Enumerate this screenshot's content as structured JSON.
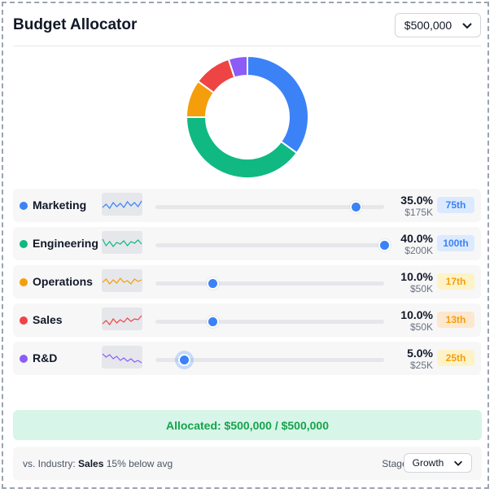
{
  "header": {
    "title": "Budget Allocator",
    "budget_value": "$500,000"
  },
  "chart_data": {
    "type": "pie",
    "categories": [
      "Marketing",
      "Engineering",
      "Operations",
      "Sales",
      "R&D"
    ],
    "values": [
      35,
      40,
      10,
      10,
      5
    ],
    "colors": [
      "#3b82f6",
      "#10b981",
      "#f59e0b",
      "#ef4444",
      "#8b5cf6"
    ]
  },
  "departments": [
    {
      "name": "Marketing",
      "color": "#3b82f6",
      "percent": "35.0%",
      "amount": "$175K",
      "badge": "75th",
      "badge_bg": "#dbeafe",
      "badge_color": "#3b82f6",
      "slider_value": 35,
      "spark": [
        10,
        14,
        9,
        16,
        11,
        15,
        10,
        17,
        12,
        16,
        11,
        18
      ]
    },
    {
      "name": "Engineering",
      "color": "#10b981",
      "percent": "40.0%",
      "amount": "$200K",
      "badge": "100th",
      "badge_bg": "#dbeafe",
      "badge_color": "#3b82f6",
      "slider_value": 40,
      "spark": [
        18,
        10,
        15,
        9,
        14,
        12,
        16,
        10,
        15,
        13,
        17,
        12
      ]
    },
    {
      "name": "Operations",
      "color": "#f59e0b",
      "percent": "10.0%",
      "amount": "$50K",
      "badge": "17th",
      "badge_bg": "#fef3c7",
      "badge_color": "#f59e0b",
      "slider_value": 10,
      "spark": [
        12,
        16,
        10,
        15,
        11,
        17,
        12,
        14,
        10,
        16,
        13,
        15
      ]
    },
    {
      "name": "Sales",
      "color": "#ef4444",
      "percent": "10.0%",
      "amount": "$50K",
      "badge": "13th",
      "badge_bg": "#fde7cf",
      "badge_color": "#f59e0b",
      "slider_value": 10,
      "spark": [
        8,
        12,
        7,
        14,
        9,
        13,
        10,
        15,
        11,
        14,
        13,
        18
      ]
    },
    {
      "name": "R&D",
      "color": "#8b5cf6",
      "percent": "5.0%",
      "amount": "$25K",
      "badge": "25th",
      "badge_bg": "#fef3c7",
      "badge_color": "#f59e0b",
      "slider_value": 5,
      "spark": [
        18,
        14,
        17,
        12,
        15,
        10,
        13,
        9,
        12,
        8,
        10,
        7
      ]
    }
  ],
  "allocated_text": "Allocated: $500,000 / $500,000",
  "footer": {
    "prefix": "vs. Industry:",
    "dept": "Sales",
    "comparison": "15% below avg",
    "stage_label": "Stage:",
    "stage_value": "Growth"
  }
}
